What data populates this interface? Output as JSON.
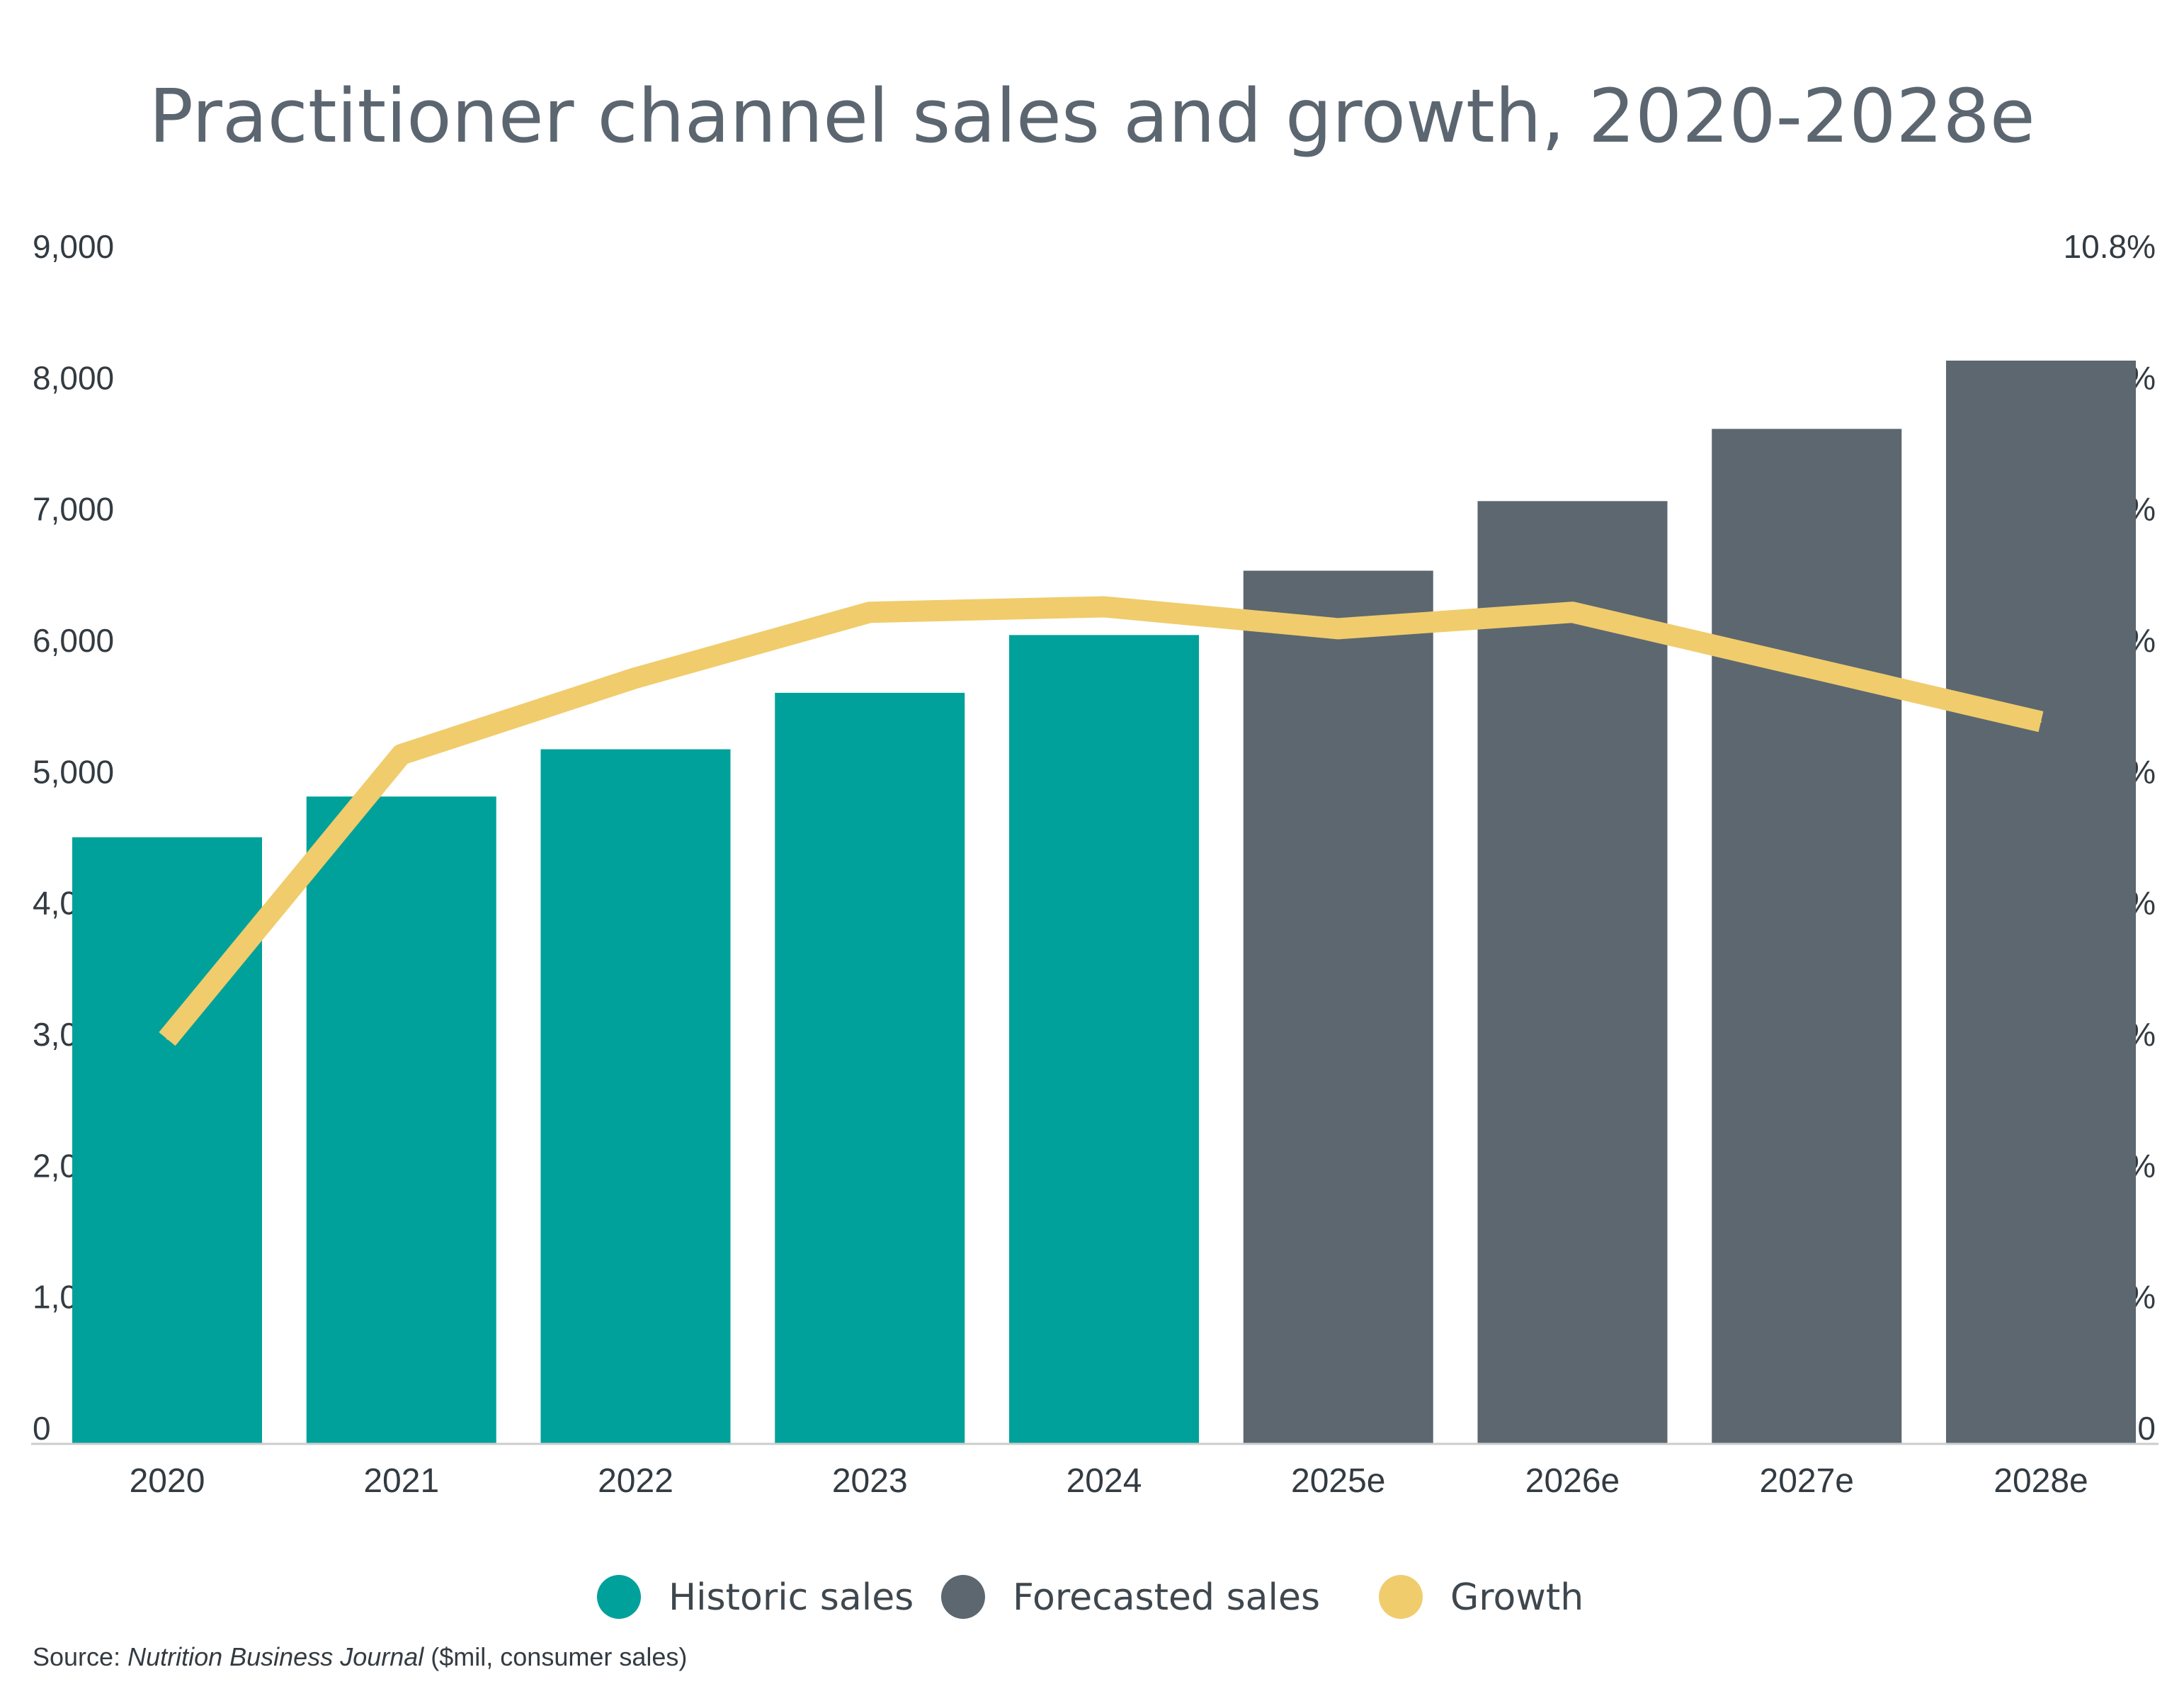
{
  "chart_data": {
    "type": "bar",
    "title": "Practitioner channel sales and growth, 2020-2028e",
    "categories": [
      "2020",
      "2021",
      "2022",
      "2023",
      "2024",
      "2025e",
      "2026e",
      "2027e",
      "2028e"
    ],
    "series": [
      {
        "name": "Historic sales",
        "type": "bar",
        "axis": "left",
        "color": "#00a19b",
        "values": [
          4620,
          4930,
          5290,
          5720,
          6160,
          null,
          null,
          null,
          null
        ]
      },
      {
        "name": "Forecasted sales",
        "type": "bar",
        "axis": "left",
        "color": "#5c6770",
        "values": [
          null,
          null,
          null,
          null,
          null,
          6650,
          7180,
          7730,
          8250
        ]
      },
      {
        "name": "Growth",
        "type": "line",
        "axis": "right",
        "color": "#f0cc6c",
        "values": [
          3.7,
          6.3,
          7.0,
          7.6,
          7.65,
          7.45,
          7.6,
          7.1,
          6.6
        ]
      }
    ],
    "y_left": {
      "min": 0,
      "max": 9000,
      "ticks": [
        0,
        1000,
        2000,
        3000,
        4000,
        5000,
        6000,
        7000,
        8000,
        9000
      ],
      "tick_labels": [
        "0",
        "1,000",
        "2,000",
        "3,000",
        "4,000",
        "5,000",
        "6,000",
        "7,000",
        "8,000",
        "9,000"
      ]
    },
    "y_right": {
      "min": 0,
      "max": 10.8,
      "ticks": [
        0,
        1.2,
        2.4,
        3.6,
        4.8,
        6.0,
        7.2,
        8.4,
        9.6,
        10.8
      ],
      "tick_labels": [
        "0",
        "1.2%",
        "2.4%",
        "3.6%",
        "4.8%",
        "6.0%",
        "7.2%",
        "8.4%",
        "9.6%",
        "10.8%"
      ]
    },
    "grid": false,
    "legend_position": "bottom"
  },
  "legend": {
    "items": [
      {
        "label": "Historic sales",
        "color": "#00a19b"
      },
      {
        "label": "Forecasted sales",
        "color": "#5c6770"
      },
      {
        "label": "Growth",
        "color": "#f0cc6c"
      }
    ]
  },
  "source": {
    "prefix": "Source: ",
    "publication": "Nutrition Business Journal",
    "suffix": " ($mil, consumer sales)"
  }
}
